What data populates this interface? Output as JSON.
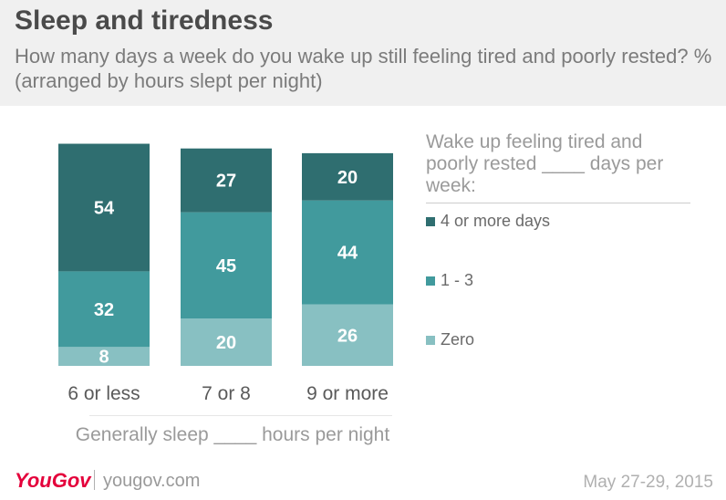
{
  "header": {
    "title": "Sleep and tiredness",
    "subtitle": "How many days a week do you wake up still feeling tired and poorly rested? % (arranged by hours slept per night)"
  },
  "legend": {
    "title": "Wake up feeling tired and poorly rested ____ days per week:",
    "items": [
      {
        "label": "4 or more days",
        "color": "#2f6e70"
      },
      {
        "label": "1 - 3",
        "color": "#419a9d"
      },
      {
        "label": "Zero",
        "color": "#88c0c2"
      }
    ]
  },
  "footer": {
    "logo": "YouGov",
    "site": "yougov.com",
    "date": "May 27-29, 2015"
  },
  "chart_data": {
    "type": "bar",
    "stacked": true,
    "categories": [
      "6 or less",
      "7 or 8",
      "9 or more"
    ],
    "series": [
      {
        "name": "Zero",
        "values": [
          8,
          20,
          26
        ],
        "color": "#88c0c2"
      },
      {
        "name": "1 - 3",
        "values": [
          32,
          45,
          44
        ],
        "color": "#419a9d"
      },
      {
        "name": "4 or more days",
        "values": [
          54,
          27,
          20
        ],
        "color": "#2f6e70"
      }
    ],
    "xlabel": "Generally sleep ____ hours per night",
    "ylabel": "",
    "ylim": [
      0,
      100
    ]
  }
}
